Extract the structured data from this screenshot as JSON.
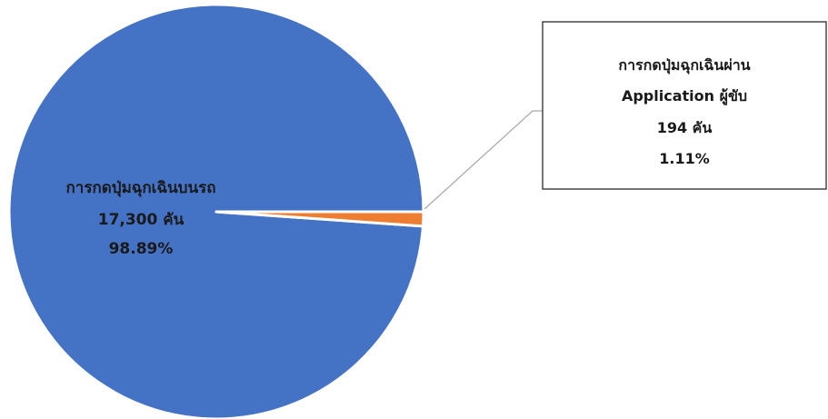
{
  "chart_data": {
    "type": "pie",
    "slices": [
      {
        "name": "การกดปุ่มฉุกเฉินบนรถ",
        "value": 17300,
        "value_text": "17,300  คัน",
        "percent_text": "98.89%",
        "color": "#4472C4"
      },
      {
        "name": "การกดปุ่มฉุกเฉินผ่าน Application ผู้ขับ",
        "name_lines": [
          "การกดปุ่มฉุกเฉินผ่าน",
          "Application ผู้ขับ"
        ],
        "value": 194,
        "value_text": "194  คัน",
        "percent_text": "1.11%",
        "color": "#ED7D31"
      }
    ],
    "start_angle_deg": 0,
    "direction": "counterclockwise",
    "legend": "none"
  }
}
